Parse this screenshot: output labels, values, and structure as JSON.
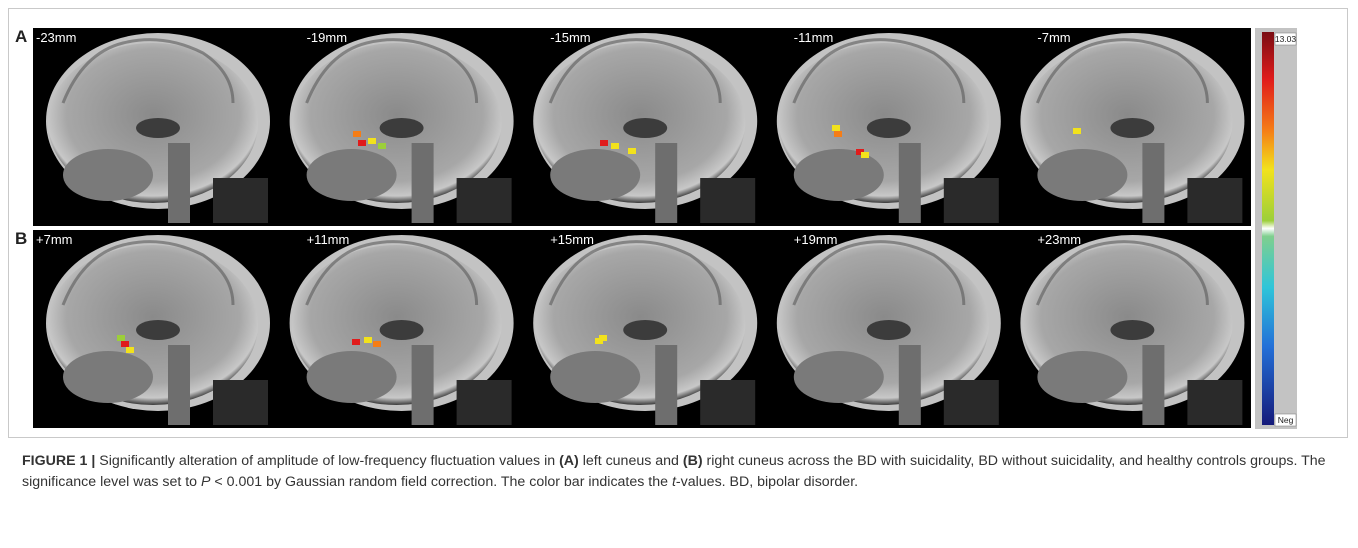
{
  "figure": {
    "panels": [
      {
        "label": "A",
        "slices": [
          "-23mm",
          "-19mm",
          "-15mm",
          "-11mm",
          "-7mm"
        ]
      },
      {
        "label": "B",
        "slices": [
          "+7mm",
          "+11mm",
          "+15mm",
          "+19mm",
          "+23mm"
        ]
      }
    ],
    "colorbar": {
      "max_label": "13.03",
      "min_label": "Neg"
    }
  },
  "caption": {
    "segments": [
      "FIGURE 1 |",
      " Significantly alteration of amplitude of low-frequency fluctuation values in ",
      "(A)",
      " left cuneus and ",
      "(B)",
      " right cuneus across the BD with suicidality, BD without suicidality, and healthy controls groups. The significance level was set to ",
      "P",
      " < 0.001 by Gaussian random field correction. The color bar indicates the ",
      "t",
      "-values. BD, bipolar disorder."
    ]
  }
}
